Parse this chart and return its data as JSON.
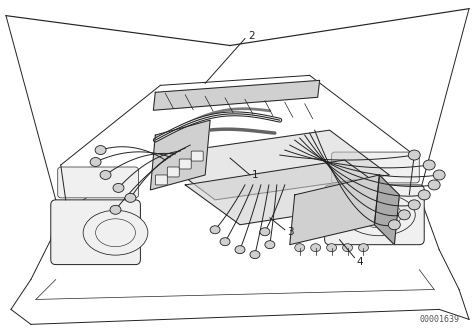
{
  "background_color": "#ffffff",
  "figure_width": 4.74,
  "figure_height": 3.34,
  "dpi": 100,
  "part_id_text": "00001639",
  "label_fontsize": 7.5,
  "part_id_fontsize": 6,
  "line_color": "#222222",
  "gray_fill": "#e8e8e8",
  "light_gray": "#f0f0f0",
  "mid_gray": "#d0d0d0",
  "dark_gray": "#aaaaaa"
}
